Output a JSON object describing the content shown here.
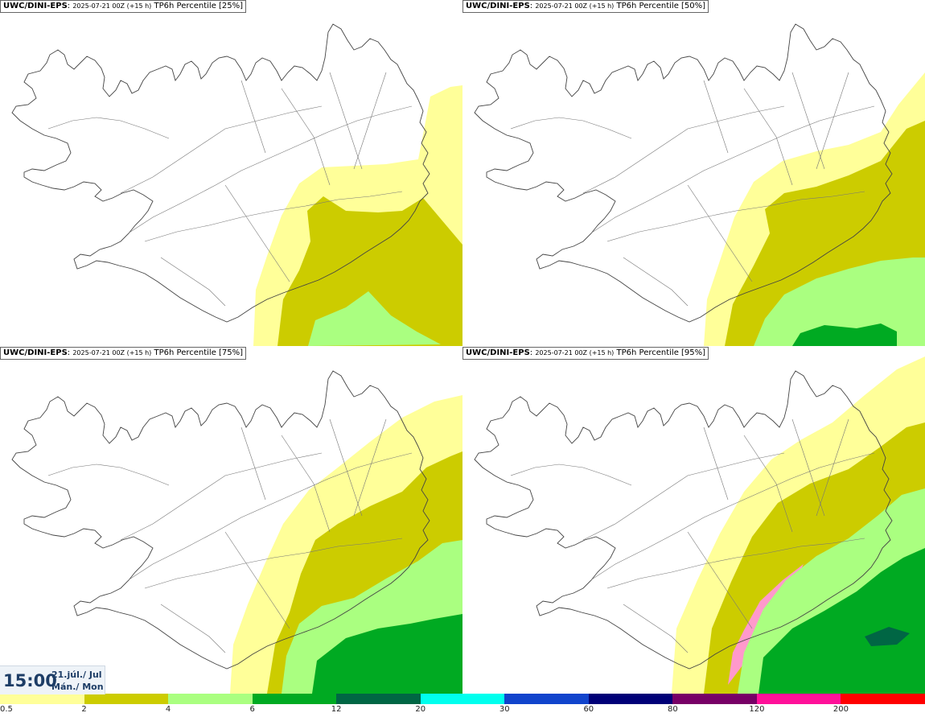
{
  "panels": [
    {
      "model": "UWC/DINI-EPS",
      "run": "2025-07-21 00Z (+15 h)",
      "product": "TP6h Percentile [25%]",
      "level": 1
    },
    {
      "model": "UWC/DINI-EPS",
      "run": "2025-07-21 00Z (+15 h)",
      "product": "TP6h Percentile [50%]",
      "level": 2
    },
    {
      "model": "UWC/DINI-EPS",
      "run": "2025-07-21 00Z (+15 h)",
      "product": "TP6h Percentile [75%]",
      "level": 3
    },
    {
      "model": "UWC/DINI-EPS",
      "run": "2025-07-21 00Z (+15 h)",
      "product": "TP6h Percentile [95%]",
      "level": 4
    }
  ],
  "time": {
    "clock": "15:00",
    "date": "21.júl./ Jul",
    "weekday": "Mán./ Mon"
  },
  "legend": {
    "colors": [
      "#ffff99",
      "#cccc00",
      "#aaff80",
      "#00aa22",
      "#006644",
      "#00ffee",
      "#1144cc",
      "#000077",
      "#770066",
      "#ff1199",
      "#ff0000"
    ],
    "labels": [
      "0.5",
      "2",
      "4",
      "6",
      "12",
      "20",
      "30",
      "60",
      "80",
      "120",
      "200"
    ]
  }
}
